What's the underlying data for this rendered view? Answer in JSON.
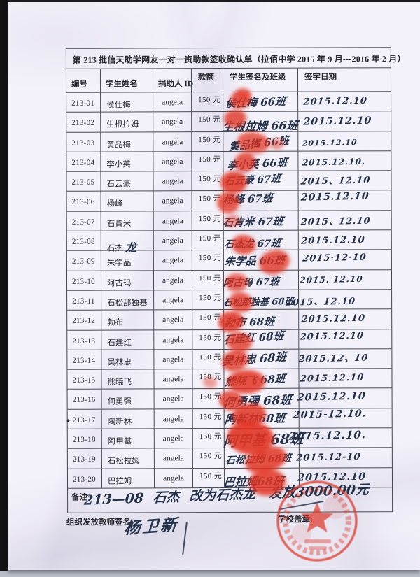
{
  "doc": {
    "title": "第 213 批信天助学网友一对一资助款签收确认单（拉佰中学 2015 年 9 月---2016 年 2 月）",
    "columns": [
      "编号",
      "学生姓名",
      "捐助人 ID",
      "款额",
      "学生签名及班级",
      "签字日期"
    ],
    "rows": [
      {
        "id": "213-01",
        "name": "侯仕梅",
        "donor": "angela",
        "amount": "150 元",
        "signature": "侯仕梅 66班",
        "date": "2015.12.10"
      },
      {
        "id": "213-02",
        "name": "生根拉姆",
        "donor": "angela",
        "amount": "150 元",
        "signature": "生根拉姆 66班",
        "date": "2015.12.10"
      },
      {
        "id": "213-03",
        "name": "黄品梅",
        "donor": "angela",
        "amount": "150 元",
        "signature": "黄品梅 66班",
        "date": "2015.12.10"
      },
      {
        "id": "213-04",
        "name": "李小英",
        "donor": "angela",
        "amount": "150 元",
        "signature": "李小英 66班",
        "date": "2015.12.10."
      },
      {
        "id": "213-05",
        "name": "石云豪",
        "donor": "angela",
        "amount": "150 元",
        "signature": "石云豪 67班",
        "date": "2015、12.10"
      },
      {
        "id": "213-06",
        "name": "杨峰",
        "donor": "angela",
        "amount": "150 元",
        "signature": "杨峰 67班",
        "date": "2015.12.10"
      },
      {
        "id": "213-07",
        "name": "石肯米",
        "donor": "angela",
        "amount": "150 元",
        "signature": "石肯米 67班",
        "date": "2015、12.10"
      },
      {
        "id": "213-08",
        "name": "石杰",
        "name_hw": "龙",
        "donor": "angela",
        "amount": "150 元",
        "signature": "石杰龙 67班",
        "date": "2015.12.10"
      },
      {
        "id": "213-09",
        "name": "朱学品",
        "donor": "angela",
        "amount": "150 元",
        "signature": "朱学品 66班",
        "date": "2015·12·10"
      },
      {
        "id": "213-10",
        "name": "阿古玛",
        "donor": "angela",
        "amount": "150 元",
        "signature": "阿古玛 67班",
        "date": "2015. 12.10"
      },
      {
        "id": "213-11",
        "name": "石松那独基",
        "donor": "angela",
        "amount": "150 元",
        "signature": "石松那独基 68班",
        "date": "2015、12.10"
      },
      {
        "id": "213-12",
        "name": "勃布",
        "donor": "angela",
        "amount": "150 元",
        "signature": "勃布 68班",
        "date": "2015.12.10"
      },
      {
        "id": "213-13",
        "name": "石建红",
        "donor": "angela",
        "amount": "150 元",
        "signature": "石建红 68班",
        "date": "2015.12.10"
      },
      {
        "id": "213-14",
        "name": "吴林忠",
        "donor": "angela",
        "amount": "150 元",
        "signature": "吴林忠 68班",
        "date": "2015.12、10"
      },
      {
        "id": "213-15",
        "name": "熊晓飞",
        "donor": "angela",
        "amount": "150 元",
        "signature": "熊晓飞 68班",
        "date": "2015.12.10"
      },
      {
        "id": "213-16",
        "name": "何勇强",
        "donor": "angela",
        "amount": "150 元",
        "signature": "何勇强 68班",
        "date": "2015.12.10"
      },
      {
        "id": "213-17",
        "bullet": "●",
        "name": "陶新林",
        "donor": "angela",
        "amount": "150 元",
        "signature": "陶新林68班",
        "date": "2015-12.10."
      },
      {
        "id": "213-18",
        "name": "阿甲基",
        "donor": "angela",
        "amount": "150 元",
        "signature": "阿甲基 68班",
        "date": "2015.12.10."
      },
      {
        "id": "213-19",
        "name": "石松拉姆",
        "donor": "angela",
        "amount": "150 元",
        "signature": "石松拉姆 68班",
        "date": "2015.12-10"
      },
      {
        "id": "213-20",
        "name": "巴拉姆",
        "donor": "angela",
        "amount": "150 元",
        "signature": "巴拉姆68班",
        "date": "2015.12.10"
      }
    ],
    "remark": {
      "label": "备注:",
      "text": "213—08 石杰 改为石杰龙　发放3000.00元"
    },
    "footer": {
      "teacher_label": "组织发放教师签名:",
      "teacher_signature": "杨卫新",
      "seal_label": "学校盖章:"
    },
    "colors": {
      "fingerprint": "#e23524",
      "stamp": "#dd3a2c",
      "ink": "#22304a",
      "print": "#26262c"
    }
  }
}
